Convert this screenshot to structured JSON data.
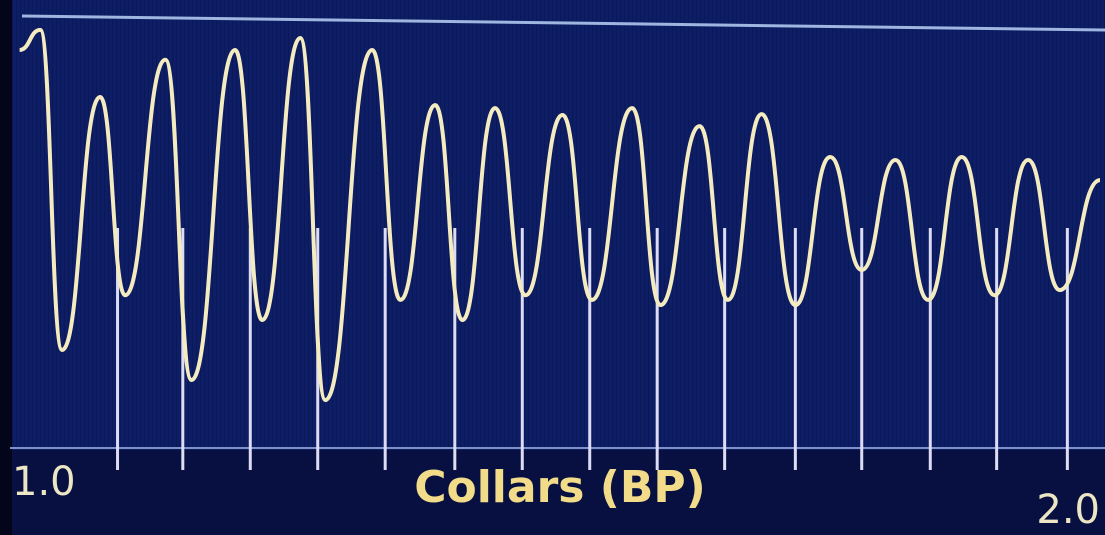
{
  "chart_data": {
    "type": "line",
    "xlabel": "Collars (BP)",
    "xlim": [
      1,
      2
    ],
    "xticks": [
      {
        "value": 1,
        "label": "1.0"
      },
      {
        "value": 2,
        "label": "2.0"
      }
    ],
    "ylim": [
      0,
      100
    ],
    "x": [
      1.007,
      1.026,
      1.046,
      1.081,
      1.104,
      1.141,
      1.165,
      1.205,
      1.23,
      1.265,
      1.288,
      1.331,
      1.357,
      1.389,
      1.414,
      1.444,
      1.472,
      1.506,
      1.533,
      1.57,
      1.596,
      1.632,
      1.658,
      1.689,
      1.72,
      1.752,
      1.781,
      1.812,
      1.842,
      1.873,
      1.903,
      1.934,
      1.963,
      2.0
    ],
    "series": [
      {
        "color": "#f4ecc0",
        "values": [
          93.0,
          97.7,
          22.9,
          82.0,
          35.7,
          90.7,
          15.9,
          93.0,
          29.9,
          95.8,
          11.2,
          93.0,
          34.6,
          80.1,
          29.9,
          79.4,
          35.7,
          77.8,
          34.6,
          79.4,
          33.4,
          75.2,
          34.6,
          78.0,
          33.4,
          68.0,
          41.6,
          67.3,
          34.6,
          68.0,
          35.7,
          67.3,
          36.9,
          62.6
        ]
      }
    ],
    "collars": {
      "color": "#dcdcf4",
      "values": [
        1.097,
        1.157,
        1.219,
        1.281,
        1.343,
        1.407,
        1.469,
        1.531,
        1.593,
        1.655,
        1.72,
        1.781,
        1.844,
        1.905,
        1.97
      ]
    }
  }
}
